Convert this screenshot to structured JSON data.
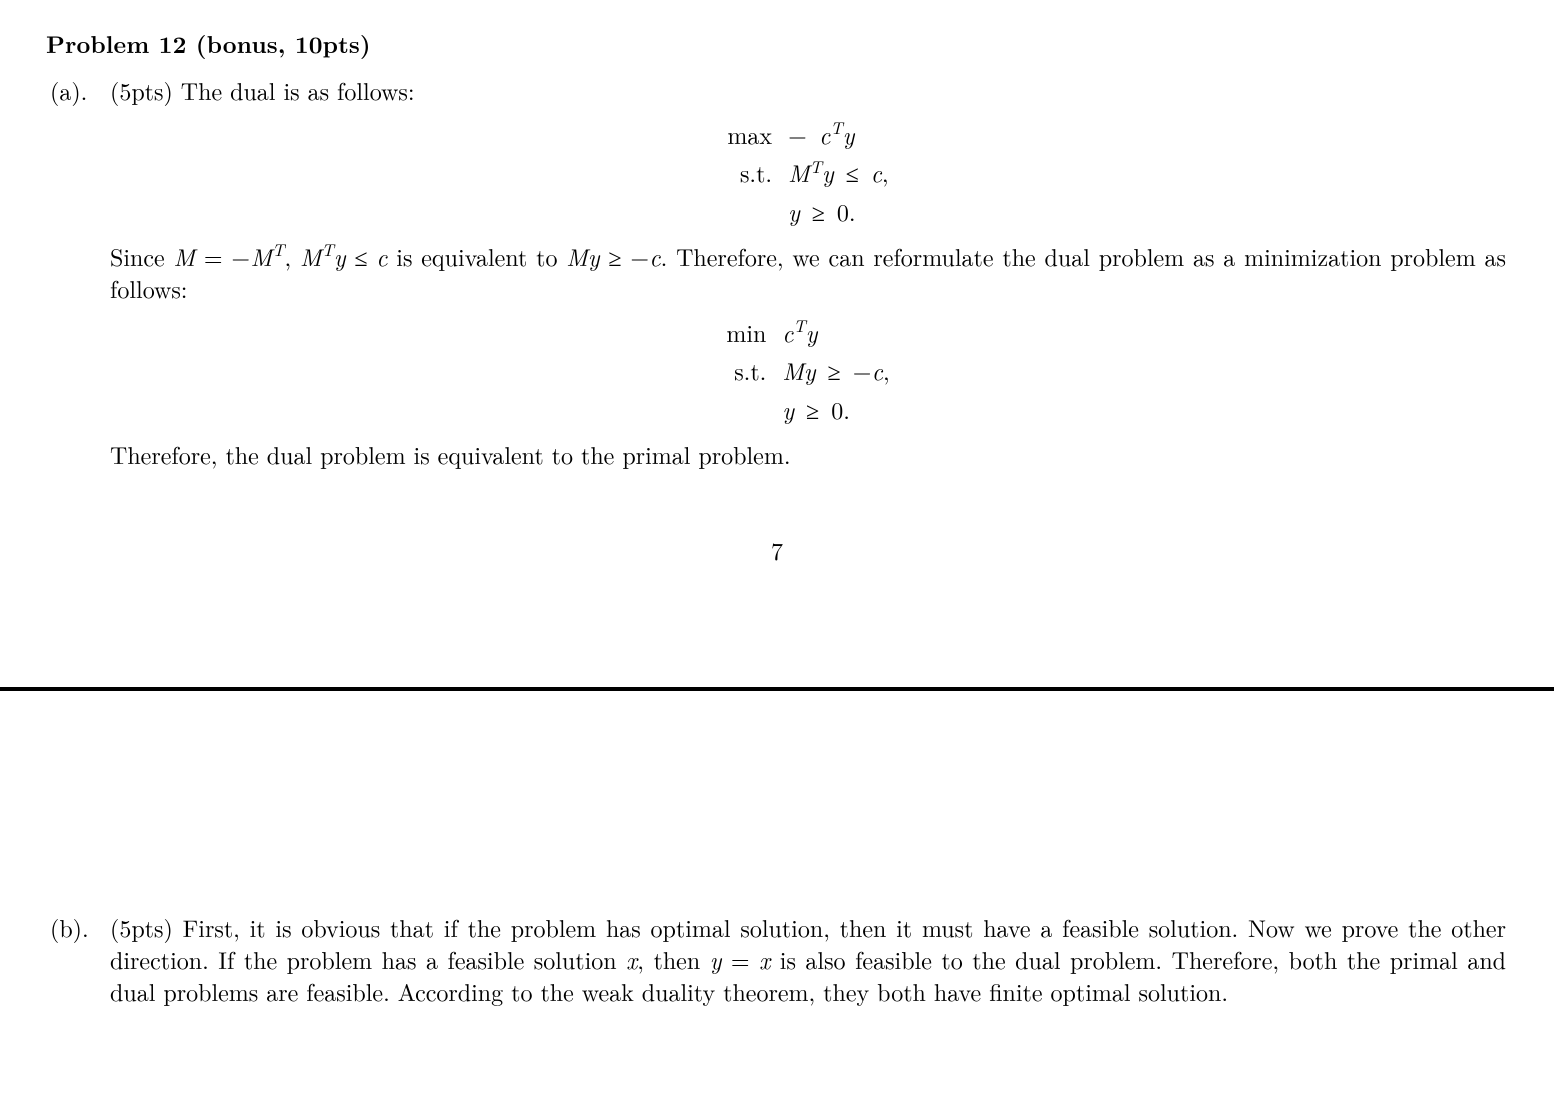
{
  "colors": {
    "text": "#000000",
    "background": "#ffffff",
    "rule": "#000000"
  },
  "fontsize_pt": 12,
  "heading": "Problem 12 (bonus, 10pts)",
  "partA": {
    "label": "(a).",
    "lead": "(5pts) The dual is as follows:",
    "eq1": {
      "row1L": "max",
      "row1R": "− cᵀy",
      "row2L": "s.t.",
      "row2R": "Mᵀy ≤ c,",
      "row3R": "y ≥ 0."
    },
    "mid": "Since M = −Mᵀ, Mᵀy ≤ c is equivalent to My ≥ −c. Therefore, we can reformulate the dual problem as a minimization problem as follows:",
    "eq2": {
      "row1L": "min",
      "row1R": "cᵀy",
      "row2L": "s.t.",
      "row2R": "My ≥ −c,",
      "row3R": "y ≥ 0."
    },
    "conclusion": "Therefore, the dual problem is equivalent to the primal problem."
  },
  "pagenum": "7",
  "partB": {
    "label": "(b).",
    "text": "(5pts) First, it is obvious that if the problem has optimal solution, then it must have a feasible solution. Now we prove the other direction. If the problem has a feasible solution x, then y = x is also feasible to the dual problem. Therefore, both the primal and dual problems are feasible. According to the weak duality theorem, they both have finite optimal solution."
  }
}
